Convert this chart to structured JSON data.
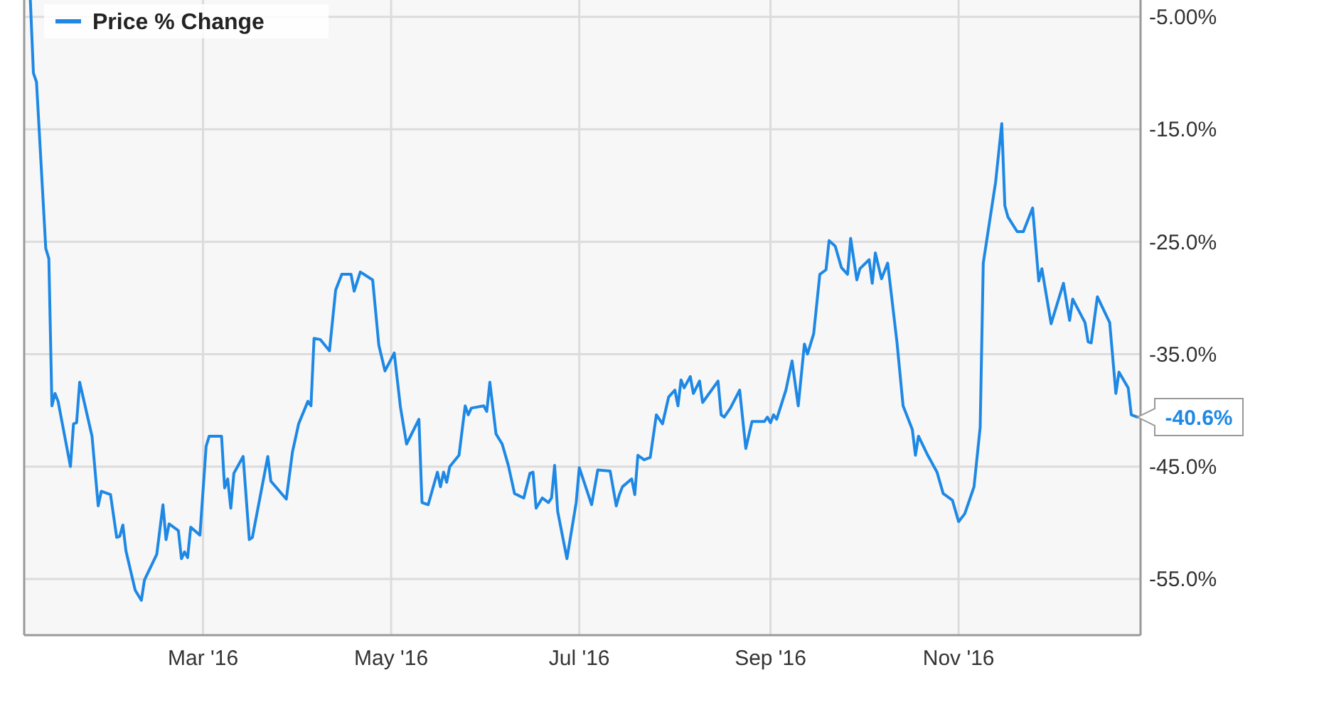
{
  "chart_data": {
    "type": "line",
    "legend": "top left",
    "grid": true,
    "marker": "none",
    "line_style": "solid",
    "xlim": [
      "2016-01-03",
      "2016-12-30"
    ],
    "xticks": [
      {
        "value": "2016-03-01",
        "label": "Mar '16"
      },
      {
        "value": "2016-05-01",
        "label": "May '16"
      },
      {
        "value": "2016-07-01",
        "label": "Jul '16"
      },
      {
        "value": "2016-09-01",
        "label": "Sep '16"
      },
      {
        "value": "2016-11-01",
        "label": "Nov '16"
      }
    ],
    "ylim": [
      -60,
      -3.5
    ],
    "yticks": [
      {
        "value": -5,
        "label": "-5.00%"
      },
      {
        "value": -15,
        "label": "-15.0%"
      },
      {
        "value": -25,
        "label": "-25.0%"
      },
      {
        "value": -35,
        "label": "-35.0%"
      },
      {
        "value": -45,
        "label": "-45.0%"
      },
      {
        "value": -55,
        "label": "-55.0%"
      }
    ],
    "annotations": [
      {
        "text": "-40.6%",
        "x": "2016-12-29",
        "y": -40.6
      }
    ],
    "series": [
      {
        "name": "Price % Change",
        "color": "#1e88e5",
        "x": [
          "2016-01-05",
          "2016-01-06",
          "2016-01-07",
          "2016-01-10",
          "2016-01-11",
          "2016-01-12",
          "2016-01-13",
          "2016-01-14",
          "2016-01-18",
          "2016-01-19",
          "2016-01-20",
          "2016-01-21",
          "2016-01-25",
          "2016-01-27",
          "2016-01-28",
          "2016-01-31",
          "2016-02-02",
          "2016-02-03",
          "2016-02-04",
          "2016-02-05",
          "2016-02-08",
          "2016-02-10",
          "2016-02-11",
          "2016-02-15",
          "2016-02-17",
          "2016-02-18",
          "2016-02-19",
          "2016-02-22",
          "2016-02-23",
          "2016-02-24",
          "2016-02-25",
          "2016-02-26",
          "2016-02-29",
          "2016-03-02",
          "2016-03-03",
          "2016-03-07",
          "2016-03-08",
          "2016-03-09",
          "2016-03-10",
          "2016-03-11",
          "2016-03-14",
          "2016-03-16",
          "2016-03-17",
          "2016-03-22",
          "2016-03-23",
          "2016-03-28",
          "2016-03-30",
          "2016-04-01",
          "2016-04-04",
          "2016-04-05",
          "2016-04-06",
          "2016-04-08",
          "2016-04-11",
          "2016-04-13",
          "2016-04-15",
          "2016-04-18",
          "2016-04-19",
          "2016-04-21",
          "2016-04-25",
          "2016-04-27",
          "2016-04-29",
          "2016-05-02",
          "2016-05-04",
          "2016-05-06",
          "2016-05-10",
          "2016-05-11",
          "2016-05-13",
          "2016-05-16",
          "2016-05-17",
          "2016-05-18",
          "2016-05-19",
          "2016-05-20",
          "2016-05-23",
          "2016-05-25",
          "2016-05-26",
          "2016-05-27",
          "2016-05-31",
          "2016-06-01",
          "2016-06-02",
          "2016-06-04",
          "2016-06-06",
          "2016-06-08",
          "2016-06-10",
          "2016-06-13",
          "2016-06-15",
          "2016-06-16",
          "2016-06-17",
          "2016-06-19",
          "2016-06-21",
          "2016-06-22",
          "2016-06-23",
          "2016-06-24",
          "2016-06-27",
          "2016-06-30",
          "2016-07-01",
          "2016-07-05",
          "2016-07-07",
          "2016-07-11",
          "2016-07-13",
          "2016-07-14",
          "2016-07-15",
          "2016-07-18",
          "2016-07-19",
          "2016-07-20",
          "2016-07-22",
          "2016-07-24",
          "2016-07-26",
          "2016-07-28",
          "2016-07-30",
          "2016-08-01",
          "2016-08-02",
          "2016-08-03",
          "2016-08-04",
          "2016-08-06",
          "2016-08-07",
          "2016-08-09",
          "2016-08-10",
          "2016-08-15",
          "2016-08-16",
          "2016-08-17",
          "2016-08-19",
          "2016-08-22",
          "2016-08-24",
          "2016-08-26",
          "2016-08-30",
          "2016-08-31",
          "2016-09-01",
          "2016-09-02",
          "2016-09-03",
          "2016-09-06",
          "2016-09-08",
          "2016-09-10",
          "2016-09-12",
          "2016-09-13",
          "2016-09-15",
          "2016-09-17",
          "2016-09-19",
          "2016-09-20",
          "2016-09-22",
          "2016-09-24",
          "2016-09-26",
          "2016-09-27",
          "2016-09-29",
          "2016-09-30",
          "2016-10-03",
          "2016-10-04",
          "2016-10-05",
          "2016-10-07",
          "2016-10-09",
          "2016-10-12",
          "2016-10-14",
          "2016-10-17",
          "2016-10-18",
          "2016-10-19",
          "2016-10-22",
          "2016-10-25",
          "2016-10-27",
          "2016-10-30",
          "2016-11-01",
          "2016-11-03",
          "2016-11-06",
          "2016-11-08",
          "2016-11-09",
          "2016-11-13",
          "2016-11-15",
          "2016-11-16",
          "2016-11-17",
          "2016-11-20",
          "2016-11-22",
          "2016-11-25",
          "2016-11-27",
          "2016-11-28",
          "2016-12-01",
          "2016-12-05",
          "2016-12-07",
          "2016-12-08",
          "2016-12-12",
          "2016-12-13",
          "2016-12-14",
          "2016-12-16",
          "2016-12-20",
          "2016-12-22",
          "2016-12-23",
          "2016-12-26",
          "2016-12-27",
          "2016-12-29"
        ],
        "values": [
          -3.5,
          -10,
          -10.8,
          -25.6,
          -26.5,
          -39.6,
          -38.5,
          -39.2,
          -45,
          -41.2,
          -41.1,
          -37.5,
          -42.3,
          -48.5,
          -47.2,
          -47.5,
          -51.3,
          -51.2,
          -50.2,
          -52.5,
          -56,
          -56.9,
          -55.1,
          -52.8,
          -48.4,
          -51.5,
          -50.1,
          -50.7,
          -53.2,
          -52.6,
          -53.1,
          -50.4,
          -51.1,
          -43.2,
          -42.3,
          -42.3,
          -46.9,
          -46.1,
          -48.7,
          -45.6,
          -44.1,
          -51.5,
          -51.3,
          -44.1,
          -46.3,
          -47.9,
          -43.7,
          -41.2,
          -39.2,
          -39.6,
          -33.6,
          -33.7,
          -34.7,
          -29.3,
          -27.9,
          -27.9,
          -29.4,
          -27.7,
          -28.4,
          -34.2,
          -36.5,
          -34.9,
          -39.7,
          -43,
          -40.8,
          -48.2,
          -48.4,
          -45.5,
          -46.8,
          -45.5,
          -46.4,
          -45,
          -44,
          -39.6,
          -40.4,
          -39.8,
          -39.6,
          -40.1,
          -37.5,
          -42.1,
          -43,
          -44.9,
          -47.4,
          -47.8,
          -45.6,
          -45.5,
          -48.7,
          -47.8,
          -48.2,
          -47.8,
          -44.9,
          -49,
          -53.2,
          -48.2,
          -45.1,
          -48.4,
          -45.3,
          -45.4,
          -48.5,
          -47.5,
          -46.8,
          -46.1,
          -47.5,
          -44,
          -44.4,
          -44.2,
          -40.4,
          -41.2,
          -38.8,
          -38.2,
          -39.6,
          -37.3,
          -38,
          -37,
          -38.5,
          -37.4,
          -39.3,
          -37.4,
          -40.4,
          -40.6,
          -39.8,
          -38.2,
          -43.4,
          -41,
          -41,
          -40.6,
          -41.1,
          -40.4,
          -40.8,
          -38.2,
          -35.6,
          -39.6,
          -34.1,
          -35,
          -33.2,
          -27.9,
          -27.5,
          -24.9,
          -25.4,
          -27.3,
          -27.9,
          -24.7,
          -28.4,
          -27.4,
          -26.6,
          -28.7,
          -26,
          -28.3,
          -26.9,
          -33.9,
          -39.6,
          -41.7,
          -44,
          -42.3,
          -44,
          -45.5,
          -47.4,
          -48,
          -49.9,
          -49.2,
          -46.8,
          -41.5,
          -26.9,
          -19.7,
          -14.5,
          -21.8,
          -22.8,
          -24.1,
          -24.1,
          -22,
          -28.5,
          -27.4,
          -32.3,
          -28.7,
          -32,
          -30.1,
          -32.2,
          -33.9,
          -34,
          -29.9,
          -32.2,
          -38.5,
          -36.6,
          -38,
          -40.4,
          -40.6
        ]
      }
    ]
  }
}
